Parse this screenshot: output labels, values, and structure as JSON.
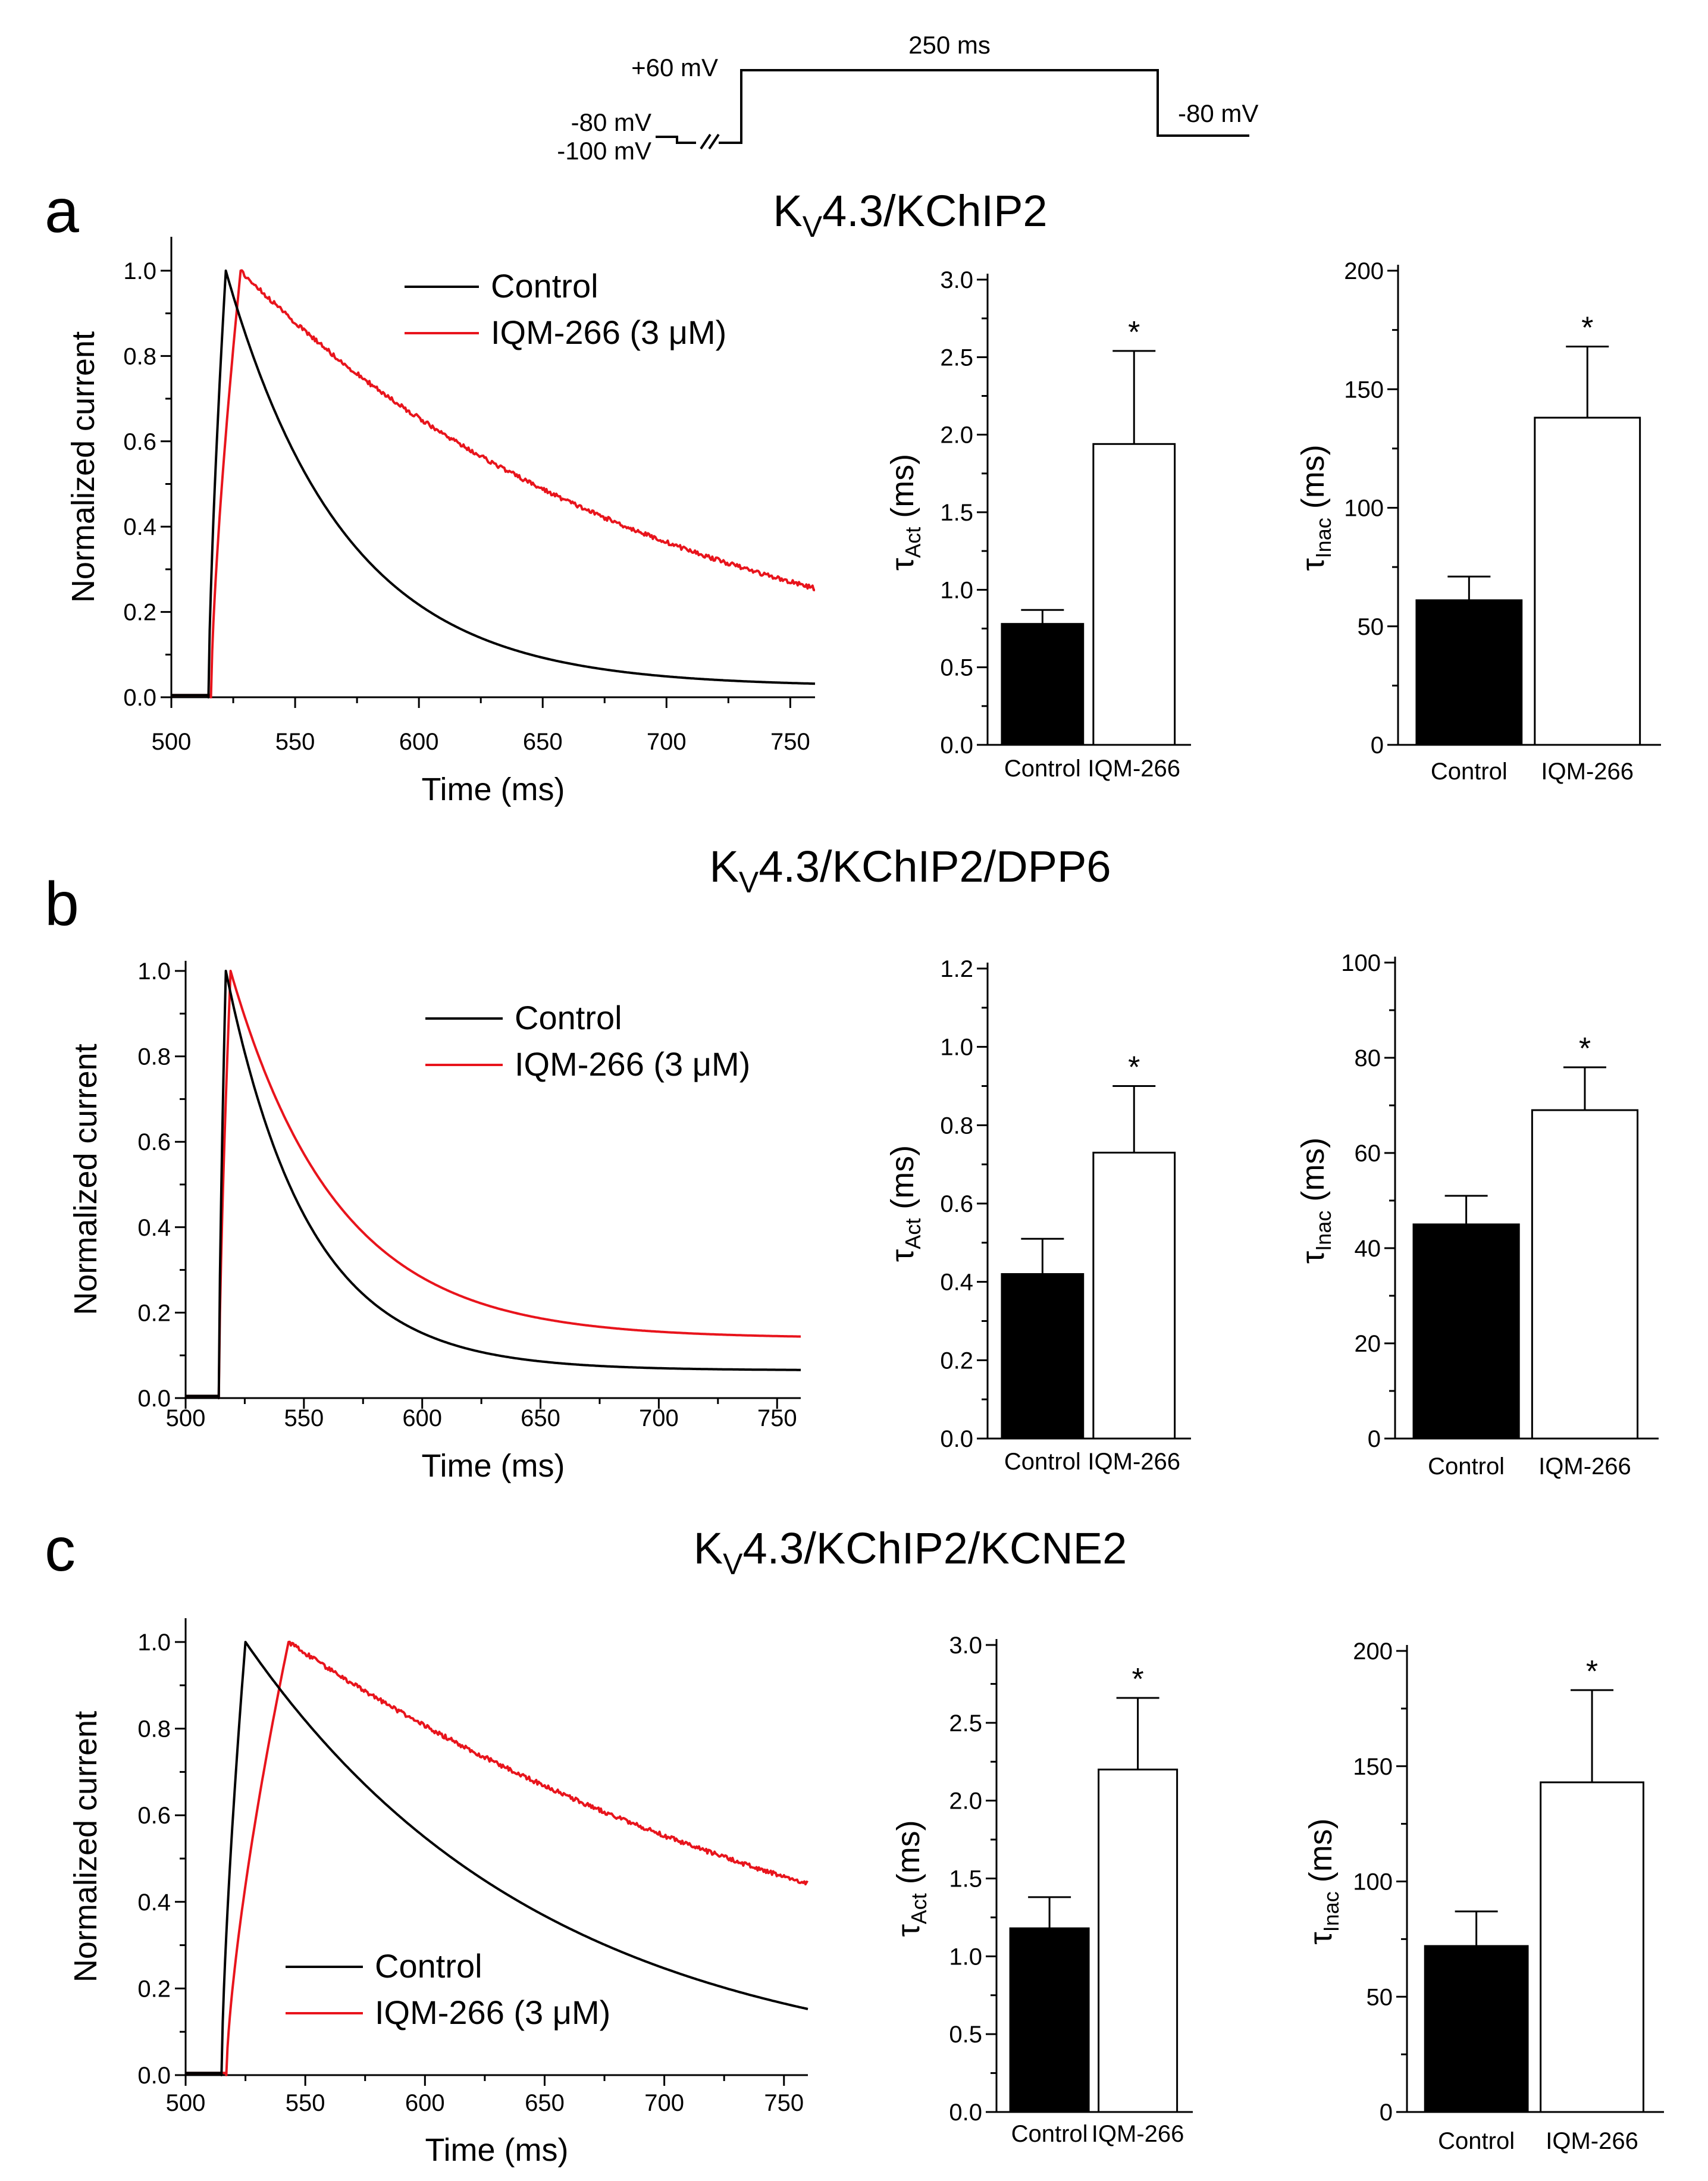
{
  "protocol": {
    "hold_label": "-80 mV",
    "prepulse_label": "-100 mV",
    "step_label": "+60 mV",
    "duration_label": "250 ms",
    "return_label": "-80 mV"
  },
  "panels": [
    {
      "letter": "a",
      "title_prefix": "K",
      "title_sub": "V",
      "title_suffix": "4.3/KChIP2",
      "trace": {
        "xlabel": "Time (ms)",
        "ylabel": "Normalized current",
        "xticks": [
          "500",
          "550",
          "600",
          "650",
          "700",
          "750"
        ],
        "yticks": [
          "0.0",
          "0.2",
          "0.4",
          "0.6",
          "0.8",
          "1.0"
        ],
        "legend": [
          "Control",
          "IQM-266 (3 μM)"
        ]
      },
      "act": {
        "ylabel_main": "τ",
        "ylabel_sub": "Act",
        "ylabel_unit": " (ms)",
        "yticks": [
          "0.0",
          "0.5",
          "1.0",
          "1.5",
          "2.0",
          "2.5",
          "3.0"
        ],
        "categories": [
          "Control",
          "IQM-266"
        ],
        "sig_marker": "*"
      },
      "inac": {
        "ylabel_main": "τ",
        "ylabel_sub": "Inac",
        "ylabel_unit": " (ms)",
        "yticks": [
          "0",
          "50",
          "100",
          "150",
          "200"
        ],
        "categories": [
          "Control",
          "IQM-266"
        ],
        "sig_marker": "*"
      }
    },
    {
      "letter": "b",
      "title_prefix": "K",
      "title_sub": "V",
      "title_suffix": "4.3/KChIP2/DPP6",
      "trace": {
        "xlabel": "Time (ms)",
        "ylabel": "Normalized current",
        "xticks": [
          "500",
          "550",
          "600",
          "650",
          "700",
          "750"
        ],
        "yticks": [
          "0.0",
          "0.2",
          "0.4",
          "0.6",
          "0.8",
          "1.0"
        ],
        "legend": [
          "Control",
          "IQM-266 (3 μM)"
        ]
      },
      "act": {
        "ylabel_main": "τ",
        "ylabel_sub": "Act",
        "ylabel_unit": " (ms)",
        "yticks": [
          "0.0",
          "0.2",
          "0.4",
          "0.6",
          "0.8",
          "1.0",
          "1.2"
        ],
        "categories": [
          "Control",
          "IQM-266"
        ],
        "sig_marker": "*"
      },
      "inac": {
        "ylabel_main": "τ",
        "ylabel_sub": "Inac",
        "ylabel_unit": " (ms)",
        "yticks": [
          "0",
          "20",
          "40",
          "60",
          "80",
          "100"
        ],
        "categories": [
          "Control",
          "IQM-266"
        ],
        "sig_marker": "*"
      }
    },
    {
      "letter": "c",
      "title_prefix": "K",
      "title_sub": "V",
      "title_suffix": "4.3/KChIP2/KCNE2",
      "trace": {
        "xlabel": "Time (ms)",
        "ylabel": "Normalized current",
        "xticks": [
          "500",
          "550",
          "600",
          "650",
          "700",
          "750"
        ],
        "yticks": [
          "0.0",
          "0.2",
          "0.4",
          "0.6",
          "0.8",
          "1.0"
        ],
        "legend": [
          "Control",
          "IQM-266 (3 μM)"
        ]
      },
      "act": {
        "ylabel_main": "τ",
        "ylabel_sub": "Act",
        "ylabel_unit": " (ms)",
        "yticks": [
          "0.0",
          "0.5",
          "1.0",
          "1.5",
          "2.0",
          "2.5",
          "3.0"
        ],
        "categories": [
          "Control",
          "IQM-266"
        ],
        "sig_marker": "*"
      },
      "inac": {
        "ylabel_main": "τ",
        "ylabel_sub": "Inac",
        "ylabel_unit": " (ms)",
        "yticks": [
          "0",
          "50",
          "100",
          "150",
          "200"
        ],
        "categories": [
          "Control",
          "IQM-266"
        ],
        "sig_marker": "*"
      }
    }
  ],
  "chart_data": [
    {
      "type": "line",
      "title": "KV4.3/KChIP2 normalized current",
      "xlabel": "Time (ms)",
      "ylabel": "Normalized current",
      "xlim": [
        500,
        760
      ],
      "ylim": [
        0,
        1.05
      ],
      "series": [
        {
          "name": "Control",
          "color": "#000000",
          "onset": 515,
          "peak_time": 522,
          "tau": 48,
          "baseline": 0.025
        },
        {
          "name": "IQM-266 (3 μM)",
          "color": "#e8141c",
          "onset": 516,
          "peak_time": 528,
          "tau": 170,
          "baseline": 0.0,
          "noise": 0.005
        }
      ]
    },
    {
      "type": "bar",
      "title": "KV4.3/KChIP2 activation time constant",
      "ylabel": "τAct (ms)",
      "ylim": [
        0,
        3.0
      ],
      "categories": [
        "Control",
        "IQM-266"
      ],
      "values": [
        0.78,
        1.94
      ],
      "errors": [
        0.09,
        0.6
      ],
      "fills": [
        "#000000",
        "#ffffff"
      ],
      "significance": [
        false,
        true
      ]
    },
    {
      "type": "bar",
      "title": "KV4.3/KChIP2 inactivation time constant",
      "ylabel": "τInac (ms)",
      "ylim": [
        0,
        200
      ],
      "categories": [
        "Control",
        "IQM-266"
      ],
      "values": [
        61,
        138
      ],
      "errors": [
        10,
        30
      ],
      "fills": [
        "#000000",
        "#ffffff"
      ],
      "significance": [
        false,
        true
      ]
    },
    {
      "type": "line",
      "title": "KV4.3/KChIP2/DPP6 normalized current",
      "xlabel": "Time (ms)",
      "ylabel": "Normalized current",
      "xlim": [
        500,
        760
      ],
      "ylim": [
        0,
        1.05
      ],
      "series": [
        {
          "name": "Control",
          "color": "#000000",
          "onset": 514,
          "peak_time": 517,
          "tau": 35,
          "baseline": 0.065
        },
        {
          "name": "IQM-266 (3 μM)",
          "color": "#e8141c",
          "onset": 514,
          "peak_time": 519,
          "tau": 45,
          "baseline": 0.14
        }
      ]
    },
    {
      "type": "bar",
      "title": "KV4.3/KChIP2/DPP6 activation time constant",
      "ylabel": "τAct (ms)",
      "ylim": [
        0,
        1.2
      ],
      "categories": [
        "Control",
        "IQM-266"
      ],
      "values": [
        0.42,
        0.73
      ],
      "errors": [
        0.09,
        0.17
      ],
      "fills": [
        "#000000",
        "#ffffff"
      ],
      "significance": [
        false,
        true
      ]
    },
    {
      "type": "bar",
      "title": "KV4.3/KChIP2/DPP6 inactivation time constant",
      "ylabel": "τInac (ms)",
      "ylim": [
        0,
        100
      ],
      "categories": [
        "Control",
        "IQM-266"
      ],
      "values": [
        45,
        69
      ],
      "errors": [
        6,
        9
      ],
      "fills": [
        "#000000",
        "#ffffff"
      ],
      "significance": [
        false,
        true
      ]
    },
    {
      "type": "line",
      "title": "KV4.3/KChIP2/KCNE2 normalized current",
      "xlabel": "Time (ms)",
      "ylabel": "Normalized current",
      "xlim": [
        500,
        760
      ],
      "ylim": [
        0,
        1.05
      ],
      "series": [
        {
          "name": "Control",
          "color": "#000000",
          "onset": 515,
          "peak_time": 525,
          "tau": 125,
          "baseline": 0.0
        },
        {
          "name": "IQM-266 (3 μM)",
          "color": "#e8141c",
          "onset": 517,
          "peak_time": 543,
          "tau": 265,
          "baseline": 0.0,
          "noise": 0.005
        }
      ]
    },
    {
      "type": "bar",
      "title": "KV4.3/KChIP2/KCNE2 activation time constant",
      "ylabel": "τAct (ms)",
      "ylim": [
        0,
        3.0
      ],
      "categories": [
        "Control",
        "IQM-266"
      ],
      "values": [
        1.18,
        2.2
      ],
      "errors": [
        0.2,
        0.46
      ],
      "fills": [
        "#000000",
        "#ffffff"
      ],
      "significance": [
        false,
        true
      ]
    },
    {
      "type": "bar",
      "title": "KV4.3/KChIP2/KCNE2 inactivation time constant",
      "ylabel": "τInac (ms)",
      "ylim": [
        0,
        200
      ],
      "categories": [
        "Control",
        "IQM-266"
      ],
      "values": [
        72,
        143
      ],
      "errors": [
        15,
        40
      ],
      "fills": [
        "#000000",
        "#ffffff"
      ],
      "significance": [
        false,
        true
      ]
    }
  ]
}
